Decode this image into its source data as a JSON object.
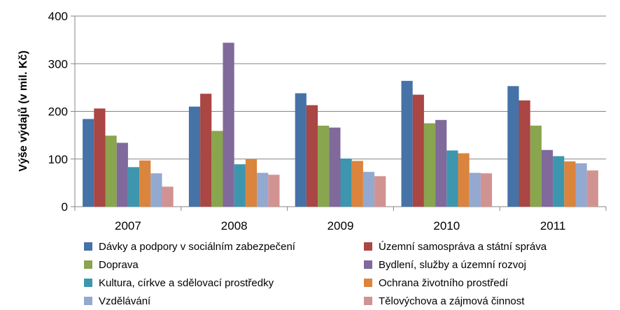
{
  "chart_data": {
    "type": "bar",
    "ylabel": "Výše výdajů (v mil. Kč)",
    "ylim": [
      0,
      400
    ],
    "yticks": [
      0,
      100,
      200,
      300,
      400
    ],
    "grid": true,
    "legend_position": "bottom",
    "categories": [
      "2007",
      "2008",
      "2009",
      "2010",
      "2011"
    ],
    "series": [
      {
        "name": "Dávky a podpory v sociálním zabezpečení",
        "color": "#4572A7",
        "values": [
          184,
          210,
          238,
          264,
          253
        ]
      },
      {
        "name": "Územní samospráva a státní správa",
        "color": "#AA4643",
        "values": [
          206,
          237,
          213,
          235,
          223
        ]
      },
      {
        "name": "Doprava",
        "color": "#89A54E",
        "values": [
          149,
          159,
          170,
          175,
          170
        ]
      },
      {
        "name": "Bydlení, služby a územní rozvoj",
        "color": "#80699B",
        "values": [
          134,
          344,
          166,
          182,
          119
        ]
      },
      {
        "name": "Kultura, církve a sdělovací prostředky",
        "color": "#3D96AE",
        "values": [
          83,
          89,
          101,
          118,
          106
        ]
      },
      {
        "name": "Ochrana životního prostředí",
        "color": "#DB843D",
        "values": [
          97,
          100,
          96,
          112,
          95
        ]
      },
      {
        "name": "Vzdělávání",
        "color": "#93A9CF",
        "values": [
          70,
          71,
          73,
          71,
          91
        ]
      },
      {
        "name": "Tělovýchova a zájmová činnost",
        "color": "#D19392",
        "values": [
          42,
          67,
          64,
          70,
          76
        ]
      }
    ]
  }
}
